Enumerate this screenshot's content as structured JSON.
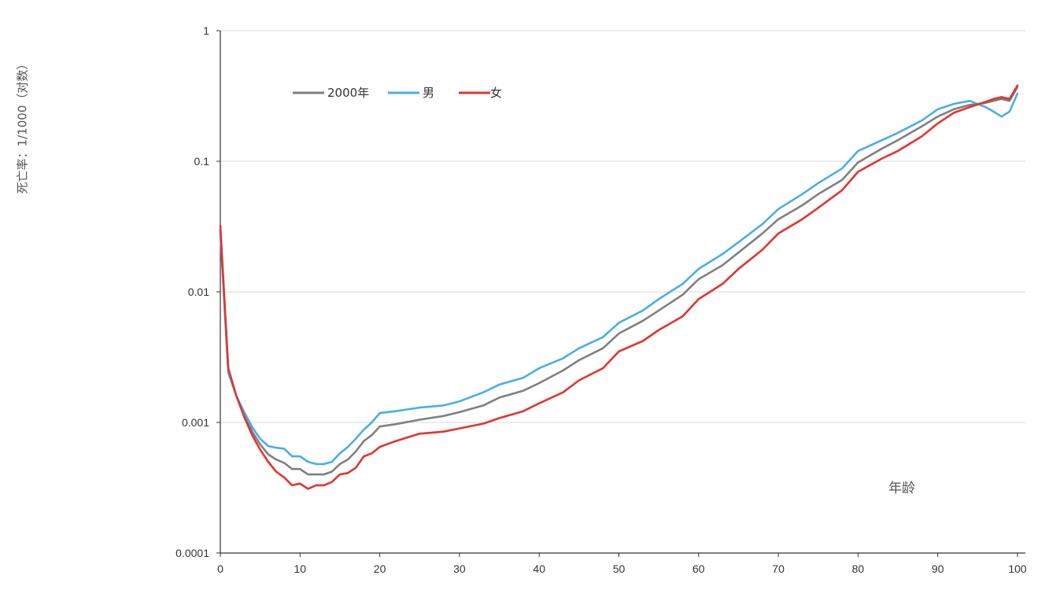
{
  "chart_data": {
    "type": "line",
    "ylabel": "死亡率：1/1000（对数）",
    "xlabel": "年龄",
    "yscale": "log",
    "ylim": [
      0.0001,
      1
    ],
    "xlim": [
      0,
      100
    ],
    "y_tick_labels": [
      "1",
      "0.1",
      "0.01",
      "0.001",
      "0.0001"
    ],
    "y_ticks": [
      1,
      0.1,
      0.01,
      0.001,
      0.0001
    ],
    "x_ticks": [
      0,
      10,
      20,
      30,
      40,
      50,
      60,
      70,
      80,
      90,
      100
    ],
    "x_tick_labels": [
      "0",
      "10",
      "20",
      "30",
      "40",
      "50",
      "60",
      "70",
      "80",
      "90",
      "100"
    ],
    "grid": "horizontal",
    "legend_position": "top-left",
    "series": [
      {
        "name": "2000年",
        "color": "#808080",
        "ages": [
          0,
          1,
          2,
          3,
          4,
          5,
          6,
          7,
          8,
          9,
          10,
          11,
          12,
          13,
          14,
          15,
          16,
          17,
          18,
          19,
          20,
          22,
          25,
          28,
          30,
          33,
          35,
          38,
          40,
          43,
          45,
          48,
          50,
          53,
          55,
          58,
          60,
          63,
          65,
          68,
          70,
          73,
          75,
          78,
          80,
          83,
          85,
          88,
          90,
          92,
          94,
          96,
          98,
          99,
          100
        ],
        "values": [
          0.03,
          0.0025,
          0.0016,
          0.00115,
          0.00085,
          0.00068,
          0.00057,
          0.00052,
          0.00049,
          0.00044,
          0.00044,
          0.0004,
          0.0004,
          0.0004,
          0.00042,
          0.00048,
          0.00052,
          0.0006,
          0.00072,
          0.0008,
          0.00093,
          0.00097,
          0.00105,
          0.00112,
          0.0012,
          0.00135,
          0.00155,
          0.00175,
          0.002,
          0.0025,
          0.003,
          0.0037,
          0.0048,
          0.006,
          0.0072,
          0.0095,
          0.0125,
          0.016,
          0.02,
          0.028,
          0.036,
          0.046,
          0.056,
          0.072,
          0.098,
          0.125,
          0.145,
          0.185,
          0.22,
          0.25,
          0.27,
          0.28,
          0.3,
          0.29,
          0.37
        ]
      },
      {
        "name": "男",
        "color": "#4aaee8",
        "ages": [
          0,
          1,
          2,
          3,
          4,
          5,
          6,
          7,
          8,
          9,
          10,
          11,
          12,
          13,
          14,
          15,
          16,
          17,
          18,
          19,
          20,
          22,
          25,
          28,
          30,
          33,
          35,
          38,
          40,
          43,
          45,
          48,
          50,
          53,
          55,
          58,
          60,
          63,
          65,
          68,
          70,
          73,
          75,
          78,
          80,
          83,
          85,
          88,
          90,
          92,
          94,
          96,
          97,
          98,
          99,
          100
        ],
        "values": [
          0.028,
          0.0024,
          0.0016,
          0.0012,
          0.00092,
          0.00075,
          0.00066,
          0.00064,
          0.00063,
          0.00055,
          0.00055,
          0.0005,
          0.00048,
          0.00048,
          0.0005,
          0.00058,
          0.00065,
          0.00075,
          0.00088,
          0.001,
          0.00118,
          0.00122,
          0.0013,
          0.00135,
          0.00145,
          0.0017,
          0.00195,
          0.0022,
          0.0026,
          0.0031,
          0.0037,
          0.0045,
          0.0058,
          0.0072,
          0.0088,
          0.0115,
          0.015,
          0.0195,
          0.024,
          0.033,
          0.043,
          0.056,
          0.068,
          0.088,
          0.12,
          0.145,
          0.165,
          0.205,
          0.25,
          0.275,
          0.29,
          0.26,
          0.24,
          0.22,
          0.24,
          0.33
        ]
      },
      {
        "name": "女",
        "color": "#e03530",
        "ages": [
          0,
          1,
          2,
          3,
          4,
          5,
          6,
          7,
          8,
          9,
          10,
          11,
          12,
          13,
          14,
          15,
          16,
          17,
          18,
          19,
          20,
          22,
          25,
          28,
          30,
          33,
          35,
          38,
          40,
          43,
          45,
          48,
          50,
          53,
          55,
          58,
          60,
          63,
          65,
          68,
          70,
          73,
          75,
          78,
          80,
          83,
          85,
          88,
          90,
          92,
          94,
          96,
          97,
          98,
          99,
          100
        ],
        "values": [
          0.032,
          0.0026,
          0.0016,
          0.0011,
          0.0008,
          0.00062,
          0.0005,
          0.00042,
          0.00038,
          0.00033,
          0.00034,
          0.00031,
          0.00033,
          0.00033,
          0.00035,
          0.0004,
          0.00041,
          0.00045,
          0.00055,
          0.00058,
          0.00065,
          0.00072,
          0.00082,
          0.00085,
          0.0009,
          0.00098,
          0.00108,
          0.00122,
          0.0014,
          0.0017,
          0.0021,
          0.0026,
          0.0035,
          0.0042,
          0.0051,
          0.0065,
          0.0088,
          0.0115,
          0.015,
          0.021,
          0.028,
          0.036,
          0.044,
          0.06,
          0.083,
          0.105,
          0.12,
          0.155,
          0.195,
          0.235,
          0.26,
          0.285,
          0.3,
          0.31,
          0.3,
          0.38
        ]
      }
    ]
  }
}
